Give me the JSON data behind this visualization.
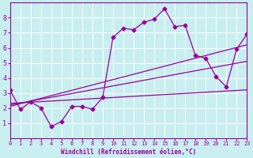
{
  "xlabel": "Windchill (Refroidissement éolien,°C)",
  "bg_color": "#c8eef0",
  "line_color": "#990099",
  "grid_color": "#ffffff",
  "xmin": 0,
  "xmax": 23,
  "ymin": 0,
  "ymax": 9,
  "yticks": [
    1,
    2,
    3,
    4,
    5,
    6,
    7,
    8
  ],
  "xticks": [
    0,
    1,
    2,
    3,
    4,
    5,
    6,
    7,
    8,
    9,
    10,
    11,
    12,
    13,
    14,
    15,
    16,
    17,
    18,
    19,
    20,
    21,
    22,
    23
  ],
  "line1_x": [
    0,
    1,
    2,
    3,
    4,
    5,
    6,
    7,
    8,
    9,
    10,
    11,
    12,
    13,
    14,
    15,
    16,
    17,
    18,
    19,
    20,
    21,
    22,
    23
  ],
  "line1_y": [
    3.2,
    1.9,
    2.4,
    2.0,
    0.75,
    1.1,
    2.1,
    2.1,
    1.9,
    2.7,
    6.7,
    7.3,
    7.2,
    7.7,
    7.9,
    8.6,
    7.4,
    7.5,
    5.5,
    5.3,
    4.1,
    3.4,
    5.9,
    6.9
  ],
  "line2_x": [
    0,
    23
  ],
  "line2_y": [
    2.1,
    6.2
  ],
  "line3_x": [
    0,
    23
  ],
  "line3_y": [
    2.2,
    5.1
  ],
  "line4_x": [
    0,
    23
  ],
  "line4_y": [
    2.3,
    3.2
  ]
}
